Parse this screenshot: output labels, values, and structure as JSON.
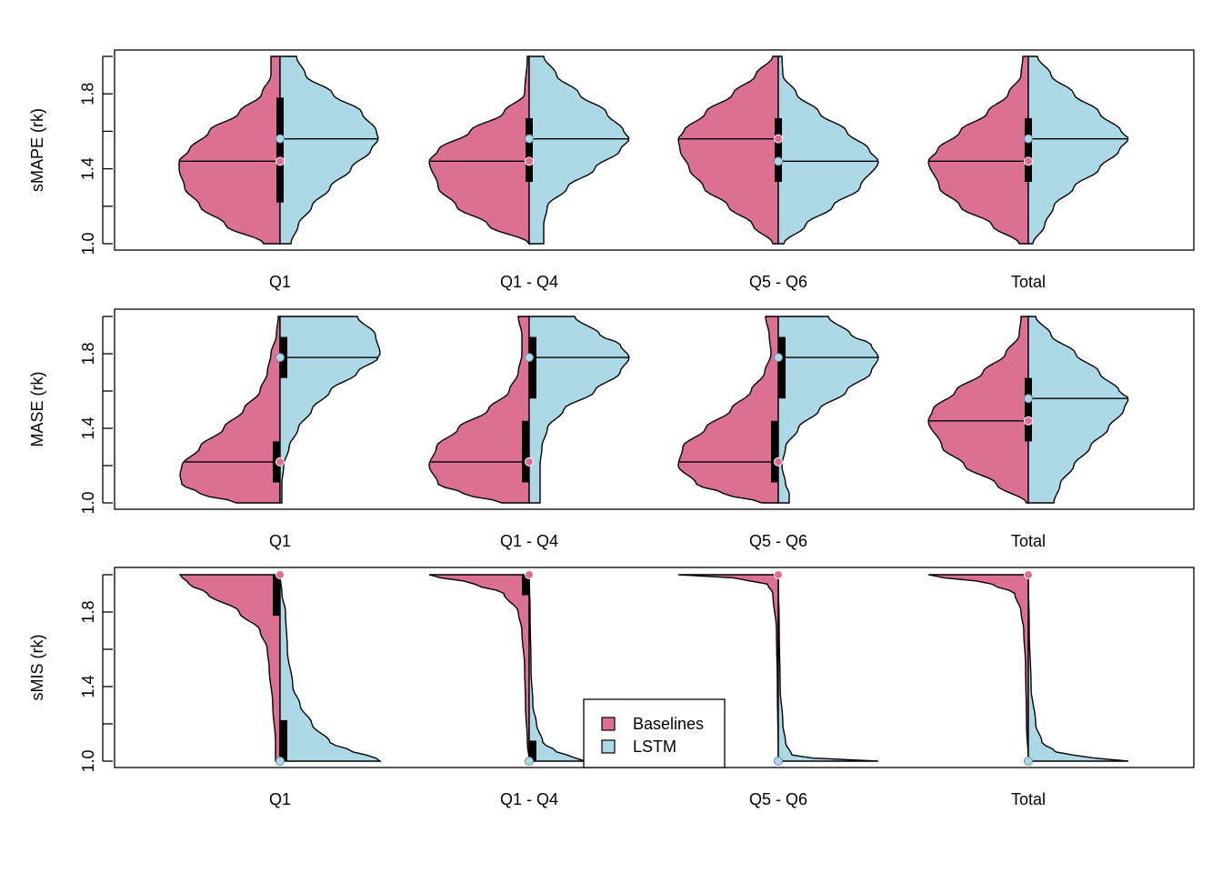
{
  "colors": {
    "baselines": "#DB7093",
    "lstm": "#ADD8E6",
    "stroke": "#000000"
  },
  "legend": {
    "position": "bottom-center",
    "items": [
      {
        "label": "Baselines",
        "color": "#DB7093"
      },
      {
        "label": "LSTM",
        "color": "#ADD8E6"
      }
    ]
  },
  "chart_data": [
    {
      "type": "split-violin",
      "ylabel": "sMAPE (rk)",
      "ylim": [
        1.0,
        2.0
      ],
      "yticks": [
        "1.0",
        "1.4",
        "1.8"
      ],
      "categories": [
        "Q1",
        "Q1 - Q4",
        "Q5 - Q6",
        "Total"
      ],
      "series": [
        {
          "name": "Baselines",
          "medians": [
            1.44,
            1.44,
            1.56,
            1.44
          ],
          "q1": [
            1.22,
            1.33,
            1.33,
            1.33
          ],
          "q3": [
            1.78,
            1.67,
            1.67,
            1.67
          ]
        },
        {
          "name": "LSTM",
          "medians": [
            1.56,
            1.56,
            1.44,
            1.56
          ]
        }
      ]
    },
    {
      "type": "split-violin",
      "ylabel": "MASE (rk)",
      "ylim": [
        1.0,
        2.0
      ],
      "yticks": [
        "1.0",
        "1.4",
        "1.8"
      ],
      "categories": [
        "Q1",
        "Q1 - Q4",
        "Q5 - Q6",
        "Total"
      ],
      "series": [
        {
          "name": "Baselines",
          "medians": [
            1.22,
            1.22,
            1.22,
            1.44
          ]
        },
        {
          "name": "LSTM",
          "medians": [
            1.78,
            1.78,
            1.78,
            1.56
          ]
        }
      ]
    },
    {
      "type": "split-violin",
      "ylabel": "sMIS (rk)",
      "ylim": [
        1.0,
        2.0
      ],
      "yticks": [
        "1.0",
        "1.4",
        "1.8"
      ],
      "categories": [
        "Q1",
        "Q1 - Q4",
        "Q5 - Q6",
        "Total"
      ],
      "series": [
        {
          "name": "Baselines",
          "medians": [
            2.0,
            2.0,
            2.0,
            2.0
          ]
        },
        {
          "name": "LSTM",
          "medians": [
            1.0,
            1.0,
            1.0,
            1.0
          ]
        }
      ]
    }
  ]
}
